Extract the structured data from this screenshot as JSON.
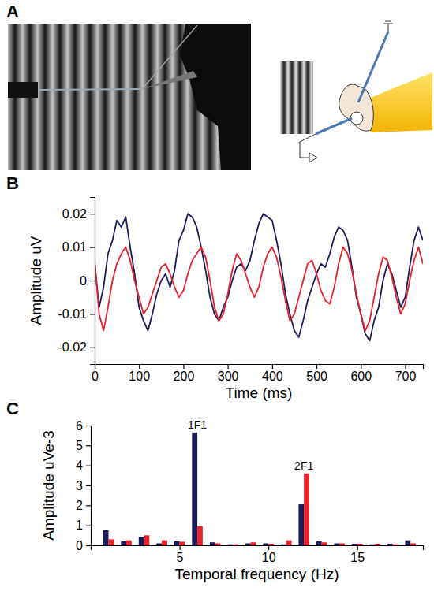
{
  "panel_labels": [
    "A",
    "B",
    "C"
  ],
  "chart_data": [
    {
      "type": "line",
      "x_label": "Time (ms)",
      "y_label": "Amplitude uV",
      "xlim": [
        0,
        740
      ],
      "xticks": [
        0,
        100,
        200,
        300,
        400,
        500,
        600,
        700
      ],
      "ylim": [
        -0.025,
        0.025
      ],
      "yticks": [
        -0.02,
        -0.01,
        0,
        0.01,
        0.02
      ],
      "x": [
        0,
        10,
        20,
        30,
        40,
        50,
        60,
        70,
        80,
        90,
        100,
        110,
        120,
        130,
        140,
        150,
        160,
        170,
        180,
        190,
        200,
        210,
        220,
        230,
        240,
        250,
        260,
        270,
        280,
        290,
        300,
        310,
        320,
        330,
        340,
        350,
        360,
        370,
        380,
        390,
        400,
        410,
        420,
        430,
        440,
        450,
        460,
        470,
        480,
        490,
        500,
        510,
        520,
        530,
        540,
        550,
        560,
        570,
        580,
        590,
        600,
        610,
        620,
        630,
        640,
        650,
        660,
        670,
        680,
        690,
        700,
        710,
        720,
        730,
        740
      ],
      "series": [
        {
          "color": "#1b1b5e",
          "values": [
            0.005,
            -0.008,
            -0.002,
            0.008,
            0.012,
            0.018,
            0.016,
            0.019,
            0.01,
            0.002,
            -0.008,
            -0.012,
            -0.015,
            -0.01,
            -0.004,
            0.0,
            0.002,
            -0.002,
            0.003,
            0.012,
            0.015,
            0.02,
            0.019,
            0.016,
            0.01,
            0.003,
            -0.005,
            -0.01,
            -0.012,
            -0.008,
            -0.005,
            0.0,
            0.004,
            0.005,
            0.003,
            0.006,
            0.012,
            0.017,
            0.02,
            0.019,
            0.018,
            0.012,
            0.005,
            -0.004,
            -0.01,
            -0.015,
            -0.017,
            -0.012,
            -0.006,
            -0.002,
            0.002,
            0.005,
            0.004,
            0.008,
            0.013,
            0.016,
            0.015,
            0.012,
            0.004,
            -0.005,
            -0.01,
            -0.016,
            -0.018,
            -0.012,
            -0.008,
            0.0,
            0.005,
            0.002,
            -0.003,
            -0.008,
            -0.005,
            0.004,
            0.012,
            0.016,
            0.012
          ]
        },
        {
          "color": "#e8202a",
          "values": [
            0.006,
            -0.01,
            -0.015,
            -0.008,
            0.0,
            0.005,
            0.008,
            0.01,
            0.006,
            0.0,
            -0.005,
            -0.01,
            -0.008,
            -0.004,
            0.0,
            0.004,
            0.005,
            0.002,
            -0.002,
            -0.005,
            -0.003,
            0.002,
            0.006,
            0.008,
            0.01,
            0.007,
            0.0,
            -0.008,
            -0.012,
            -0.01,
            -0.004,
            0.003,
            0.008,
            0.006,
            0.002,
            -0.002,
            -0.005,
            -0.002,
            0.004,
            0.008,
            0.01,
            0.007,
            0.001,
            -0.006,
            -0.012,
            -0.01,
            -0.005,
            0.0,
            0.005,
            0.006,
            0.002,
            -0.003,
            -0.006,
            -0.007,
            -0.002,
            0.005,
            0.01,
            0.008,
            0.003,
            -0.004,
            -0.01,
            -0.015,
            -0.012,
            -0.005,
            0.002,
            0.007,
            0.006,
            0.001,
            -0.005,
            -0.01,
            -0.007,
            0.0,
            0.006,
            0.01,
            0.005
          ]
        }
      ]
    },
    {
      "type": "bar",
      "x_label": "Temporal frequency (Hz)",
      "y_label": "Amplitude uVe-3",
      "xlim": [
        0,
        18.7
      ],
      "xticks": [
        5,
        10,
        15
      ],
      "ylim": [
        0,
        6
      ],
      "yticks": [
        0,
        1,
        2,
        3,
        4,
        5,
        6
      ],
      "x": [
        1,
        2,
        3,
        4,
        5,
        6,
        7,
        8,
        9,
        10,
        11,
        12,
        13,
        14,
        15,
        16,
        17,
        18
      ],
      "series": [
        {
          "color": "#1b1b5e",
          "values": [
            0.75,
            0.2,
            0.4,
            0.1,
            0.2,
            5.65,
            0.15,
            0.05,
            0.1,
            0.1,
            0.05,
            2.05,
            0.2,
            0.1,
            0.08,
            0.05,
            0.08,
            0.25
          ]
        },
        {
          "color": "#e8202a",
          "values": [
            0.3,
            0.25,
            0.5,
            0.25,
            0.18,
            0.95,
            0.1,
            0.05,
            0.15,
            0.08,
            0.25,
            3.6,
            0.15,
            0.1,
            0.08,
            0.08,
            0.05,
            0.1
          ]
        }
      ],
      "annotations": [
        {
          "text": "1F1",
          "x": 6
        },
        {
          "text": "2F1",
          "x": 12
        }
      ]
    }
  ]
}
